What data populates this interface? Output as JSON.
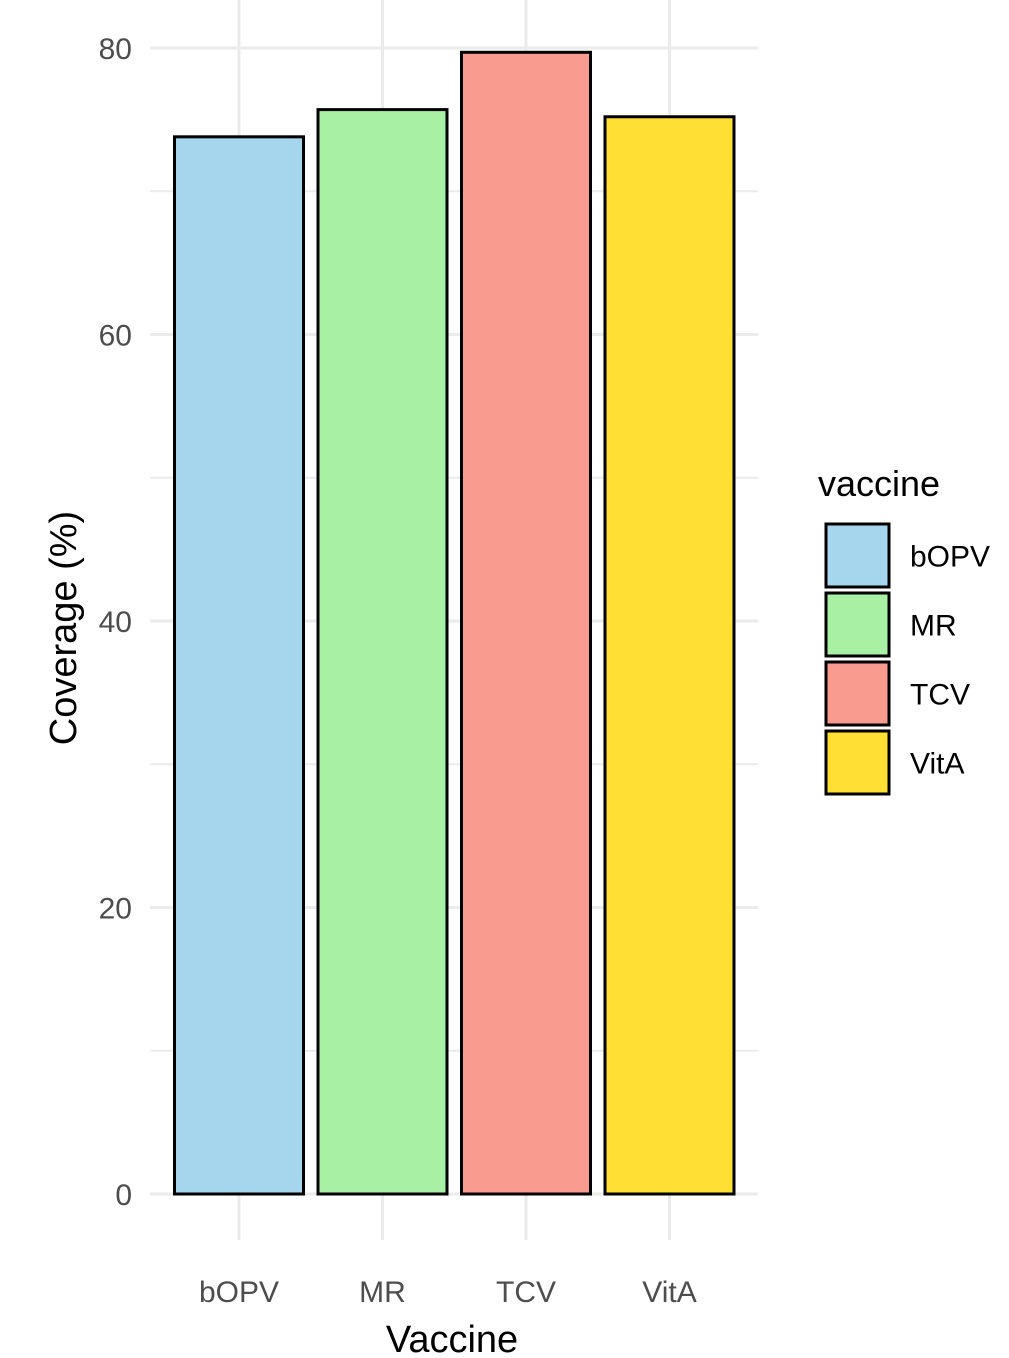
{
  "chart_data": {
    "type": "bar",
    "categories": [
      "bOPV",
      "MR",
      "TCV",
      "VitA"
    ],
    "values": [
      73.8,
      75.7,
      79.7,
      75.2
    ],
    "colors": [
      "#a6d6ee",
      "#a8f0a4",
      "#f99b8f",
      "#ffdf33"
    ],
    "xlabel": "Vaccine",
    "ylabel": "Coverage (%)",
    "ylim": [
      0,
      80
    ],
    "yticks": [
      0,
      20,
      40,
      60,
      80
    ],
    "grid": true,
    "legend": {
      "title": "vaccine",
      "placement": "right",
      "entries": [
        "bOPV",
        "MR",
        "TCV",
        "VitA"
      ]
    }
  }
}
